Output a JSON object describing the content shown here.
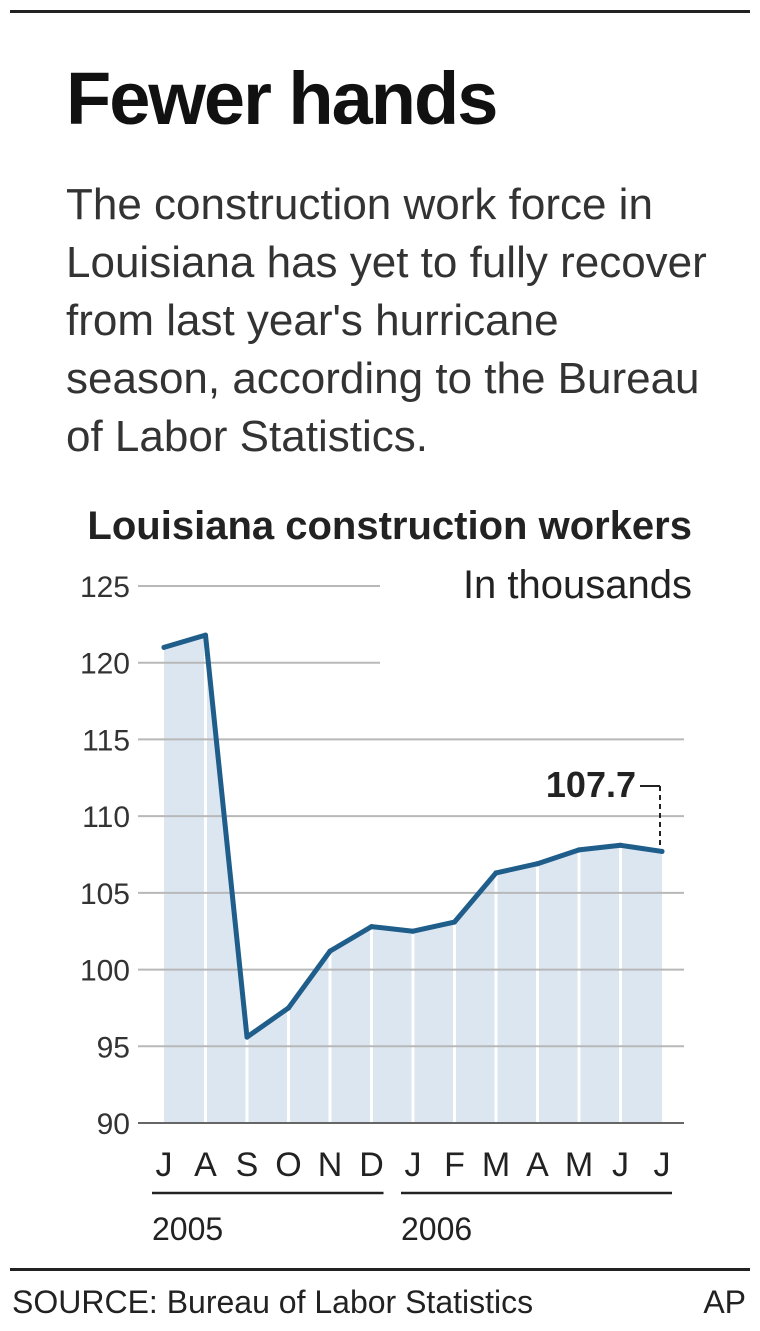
{
  "headline": "Fewer hands",
  "dek": "The construction work force in Louisiana has yet to fully recover from last year's hurricane season, according to the Bureau of Labor Statistics.",
  "source": "SOURCE: Bureau of Labor Statistics",
  "credit": "AP",
  "colors": {
    "line": "#1f5d8a",
    "area": "#dbe6f1",
    "grid": "#b8b8b8",
    "text": "#222222"
  },
  "chart_data": {
    "type": "area",
    "title": "Louisiana construction workers",
    "subtitle": "In thousands",
    "x": [
      "J",
      "A",
      "S",
      "O",
      "N",
      "D",
      "J",
      "F",
      "M",
      "A",
      "M",
      "J",
      "J"
    ],
    "years": [
      {
        "label": "2005",
        "months": 6
      },
      {
        "label": "2006",
        "months": 7
      }
    ],
    "series": [
      {
        "values": [
          121.0,
          121.8,
          95.6,
          97.5,
          101.2,
          102.8,
          102.5,
          103.1,
          106.3,
          106.9,
          107.8,
          108.1,
          107.7
        ]
      }
    ],
    "ylim": [
      90,
      125
    ],
    "yticks": [
      125,
      120,
      115,
      110,
      105,
      100,
      95,
      90
    ],
    "annotation": {
      "label": "107.7",
      "index": 12
    },
    "grid": true,
    "legend": "none"
  }
}
